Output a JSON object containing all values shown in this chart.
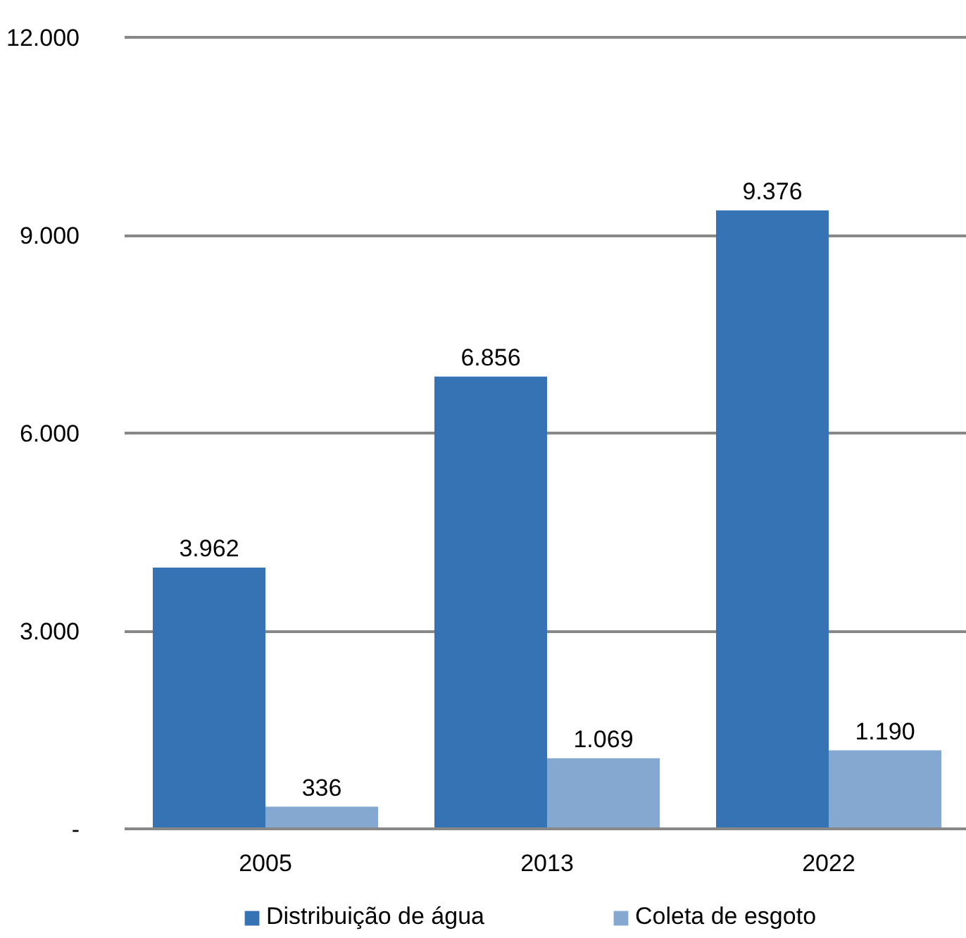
{
  "chart_data": {
    "type": "bar",
    "categories": [
      "2005",
      "2013",
      "2022"
    ],
    "series": [
      {
        "name": "Distribuição de água",
        "color": "#3673b4",
        "values": [
          3962,
          6856,
          9376
        ],
        "value_labels": [
          "3.962",
          "6.856",
          "9.376"
        ]
      },
      {
        "name": "Coleta de esgoto",
        "color": "#84a8cf",
        "values": [
          336,
          1069,
          1190
        ],
        "value_labels": [
          "336",
          "1.069",
          "1.190"
        ]
      }
    ],
    "ylim": [
      0,
      12000
    ],
    "yticks": [
      {
        "value": 0,
        "label": "-"
      },
      {
        "value": 3000,
        "label": "3.000"
      },
      {
        "value": 6000,
        "label": "6.000"
      },
      {
        "value": 9000,
        "label": "9.000"
      },
      {
        "value": 12000,
        "label": "12.000"
      }
    ],
    "grid": "y",
    "legend": "bottom"
  }
}
